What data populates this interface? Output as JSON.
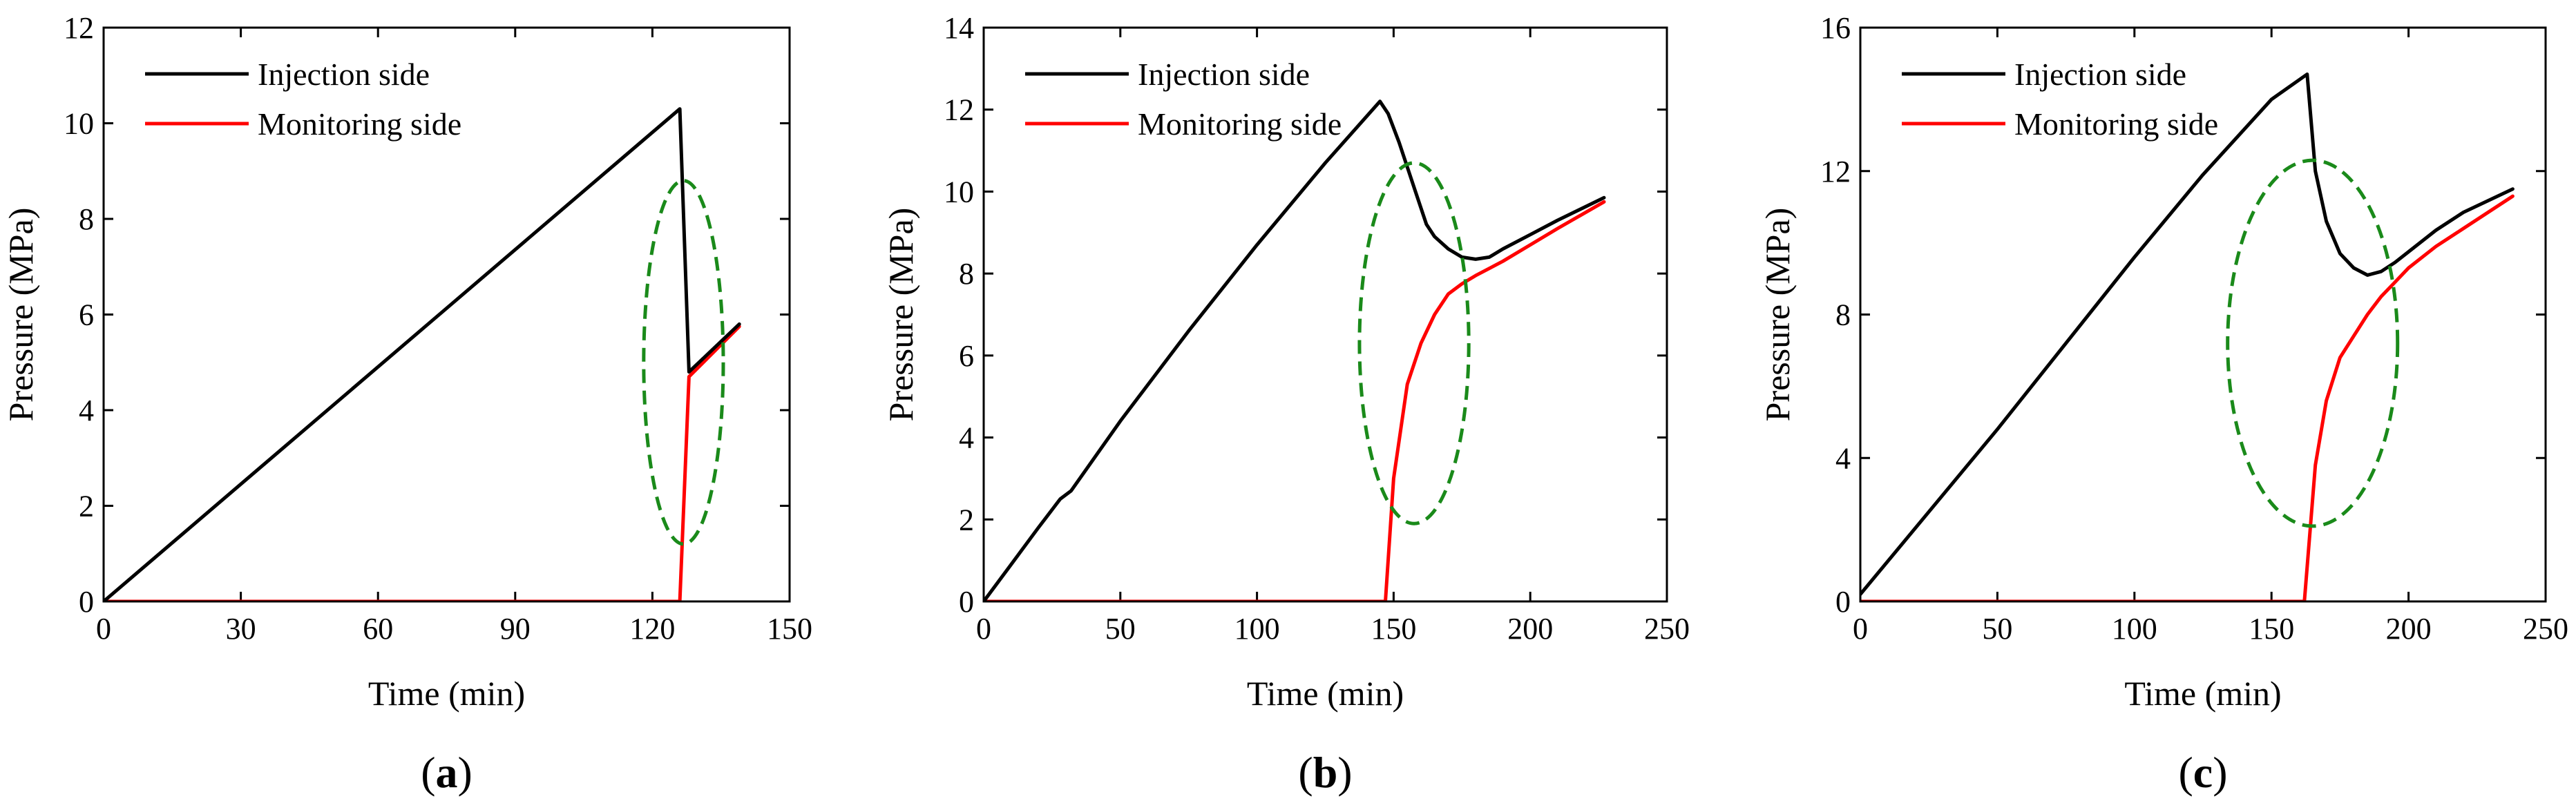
{
  "chart_data": [
    {
      "type": "line",
      "panel_label": "(a)",
      "panel_letter": "a",
      "xlabel": "Time (min)",
      "ylabel": "Pressure (MPa)",
      "xlim": [
        0,
        150
      ],
      "ylim": [
        0,
        12
      ],
      "xticks": [
        0,
        30,
        60,
        90,
        120,
        150
      ],
      "yticks": [
        0,
        2,
        4,
        6,
        8,
        10,
        12
      ],
      "legend_position": "top-left",
      "series": [
        {
          "name": "Injection side",
          "color": "#000000",
          "x": [
            0,
            126,
            128,
            139
          ],
          "y": [
            0,
            10.3,
            4.8,
            5.8
          ]
        },
        {
          "name": "Monitoring side",
          "color": "#ff0000",
          "x": [
            0,
            126,
            128,
            139
          ],
          "y": [
            0,
            0,
            4.7,
            5.75
          ]
        }
      ],
      "annotation": {
        "shape": "ellipse",
        "style": "dashed",
        "color": "#1a8a1a",
        "center": [
          126.8,
          5.0
        ],
        "radius_x": 8.7,
        "radius_y": 3.8
      }
    },
    {
      "type": "line",
      "panel_label": "(b)",
      "panel_letter": "b",
      "xlabel": "Time (min)",
      "ylabel": "Pressure (MPa)",
      "xlim": [
        0,
        250
      ],
      "ylim": [
        0,
        14
      ],
      "xticks": [
        0,
        50,
        100,
        150,
        200,
        250
      ],
      "yticks": [
        0,
        2,
        4,
        6,
        8,
        10,
        12,
        14
      ],
      "legend_position": "top-left",
      "series": [
        {
          "name": "Injection side",
          "color": "#000000",
          "x": [
            0,
            10,
            20,
            28,
            32,
            50,
            75,
            100,
            125,
            145,
            148,
            152,
            158,
            162,
            165,
            170,
            175,
            180,
            185,
            190,
            200,
            210,
            227
          ],
          "y": [
            0,
            0.9,
            1.8,
            2.5,
            2.7,
            4.4,
            6.6,
            8.7,
            10.7,
            12.2,
            11.9,
            11.2,
            10.0,
            9.2,
            8.9,
            8.6,
            8.4,
            8.35,
            8.4,
            8.6,
            8.95,
            9.3,
            9.85
          ]
        },
        {
          "name": "Monitoring side",
          "color": "#ff0000",
          "x": [
            0,
            147,
            150,
            155,
            160,
            165,
            170,
            175,
            180,
            190,
            200,
            210,
            227
          ],
          "y": [
            0,
            0,
            3.0,
            5.3,
            6.3,
            7.0,
            7.5,
            7.75,
            7.95,
            8.3,
            8.7,
            9.1,
            9.75
          ]
        }
      ],
      "annotation": {
        "shape": "ellipse",
        "style": "dashed",
        "color": "#1a8a1a",
        "center": [
          157.5,
          6.3
        ],
        "radius_x": 20,
        "radius_y": 4.4
      }
    },
    {
      "type": "line",
      "panel_label": "(c)",
      "panel_letter": "c",
      "xlabel": "Time (min)",
      "ylabel": "Pressure (MPa)",
      "xlim": [
        0,
        250
      ],
      "ylim": [
        0,
        16
      ],
      "xticks": [
        0,
        50,
        100,
        150,
        200,
        250
      ],
      "yticks": [
        0,
        4,
        8,
        12,
        16
      ],
      "legend_position": "top-left",
      "series": [
        {
          "name": "Injection side",
          "color": "#000000",
          "x": [
            0,
            25,
            50,
            75,
            100,
            125,
            150,
            163,
            166,
            170,
            175,
            180,
            185,
            190,
            195,
            200,
            210,
            220,
            238
          ],
          "y": [
            0.2,
            2.5,
            4.8,
            7.2,
            9.6,
            11.9,
            14.0,
            14.7,
            12.0,
            10.6,
            9.7,
            9.3,
            9.1,
            9.2,
            9.45,
            9.75,
            10.35,
            10.85,
            11.5
          ]
        },
        {
          "name": "Monitoring side",
          "color": "#ff0000",
          "x": [
            0,
            162,
            166,
            170,
            175,
            180,
            185,
            190,
            195,
            200,
            210,
            220,
            238
          ],
          "y": [
            0,
            0,
            3.8,
            5.6,
            6.8,
            7.4,
            8.0,
            8.5,
            8.9,
            9.3,
            9.9,
            10.4,
            11.3
          ]
        }
      ],
      "annotation": {
        "shape": "ellipse",
        "style": "dashed",
        "color": "#1a8a1a",
        "center": [
          165,
          7.2
        ],
        "radius_x": 31,
        "radius_y": 5.1
      }
    }
  ]
}
